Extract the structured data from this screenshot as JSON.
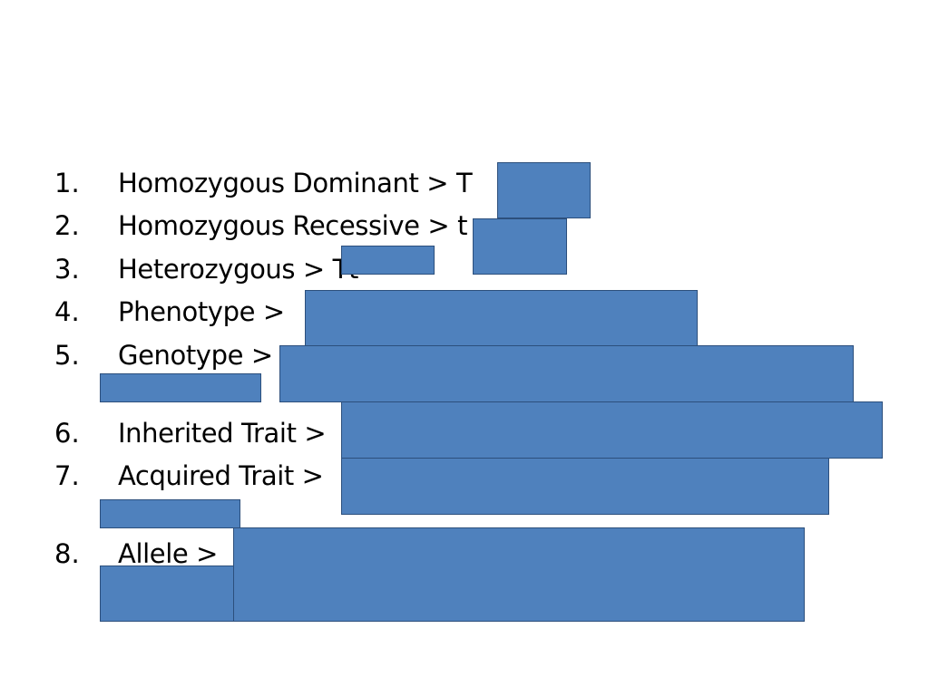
{
  "slide": {
    "list": [
      {
        "num": "1.",
        "text": "Homozygous Dominant > T"
      },
      {
        "num": "2.",
        "text": "Homozygous Recessive > t"
      },
      {
        "num": "3.",
        "text": "Heterozygous > Tt"
      },
      {
        "num": "4.",
        "text": "Phenotype >"
      },
      {
        "num": "5.",
        "text": "Genotype >"
      },
      {
        "num": "6.",
        "text": "Inherited Trait >"
      },
      {
        "num": "7.",
        "text": "Acquired Trait >"
      },
      {
        "num": "8.",
        "text": "Allele >"
      }
    ]
  },
  "colors": {
    "cover_fill": "#4f81bd",
    "cover_border": "#2c4f7c"
  }
}
